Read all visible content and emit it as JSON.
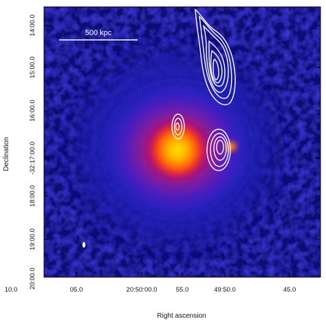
{
  "figure": {
    "xlabel": "Right ascension",
    "ylabel": "Declination",
    "scale_bar_label": "500 kpc",
    "x_ticks": [
      "10.0",
      "05.0",
      "20:50:00.0",
      "55.0",
      "49:50.0",
      "45.0"
    ],
    "y_ticks": [
      "14:00.0",
      "15:00.0",
      "16:00.0",
      "-32:17:00.0",
      "18:00.0",
      "19:00.0",
      "20:00.0"
    ],
    "colors": {
      "background": "#0a0a78",
      "frame": "#000000",
      "contours": "#ffffff",
      "core": "#ffd200",
      "halo": "#6b1fb0"
    },
    "color_map": "blue-purple-red-yellow",
    "contour_groups": 3
  }
}
